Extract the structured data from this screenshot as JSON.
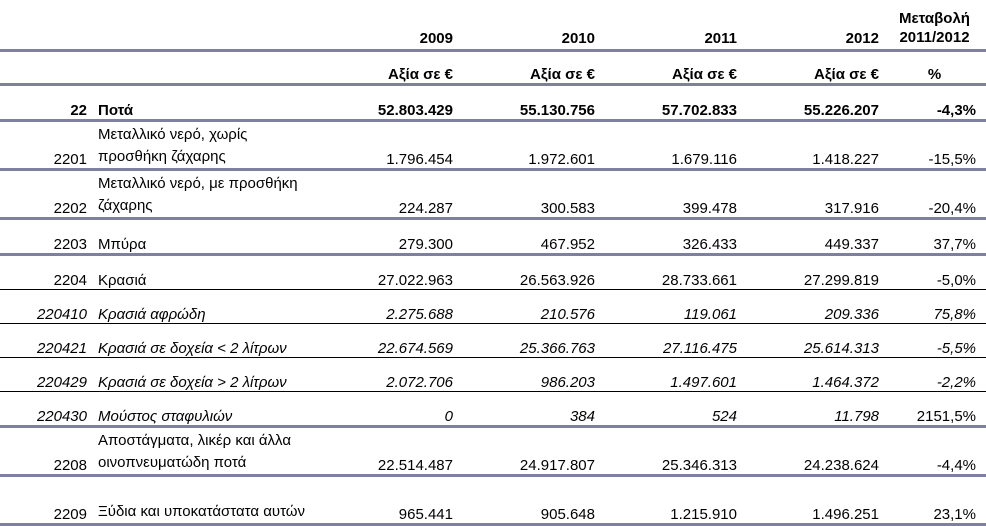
{
  "header": {
    "years": [
      "2009",
      "2010",
      "2011",
      "2012"
    ],
    "change_label": "Μεταβολή 2011/2012",
    "value_label": "Αξία σε €",
    "percent_label": "%"
  },
  "rows": [
    {
      "code": "22",
      "desc": "Ποτά",
      "v2009": "52.803.429",
      "v2010": "55.130.756",
      "v2011": "57.702.833",
      "v2012": "55.226.207",
      "change": "-4,3%"
    },
    {
      "code": "2201",
      "desc": "Μεταλλικό νερό, χωρίς προσθήκη ζάχαρης",
      "v2009": "1.796.454",
      "v2010": "1.972.601",
      "v2011": "1.679.116",
      "v2012": "1.418.227",
      "change": "-15,5%"
    },
    {
      "code": "2202",
      "desc": "Μεταλλικό νερό, με προσθήκη ζάχαρης",
      "v2009": "224.287",
      "v2010": "300.583",
      "v2011": "399.478",
      "v2012": "317.916",
      "change": "-20,4%"
    },
    {
      "code": "2203",
      "desc": "Μπύρα",
      "v2009": "279.300",
      "v2010": "467.952",
      "v2011": "326.433",
      "v2012": "449.337",
      "change": "37,7%"
    },
    {
      "code": "2204",
      "desc": "Κρασιά",
      "v2009": "27.022.963",
      "v2010": "26.563.926",
      "v2011": "28.733.661",
      "v2012": "27.299.819",
      "change": "-5,0%"
    },
    {
      "code": "220410",
      "desc": "Κρασιά αφρώδη",
      "v2009": "2.275.688",
      "v2010": "210.576",
      "v2011": "119.061",
      "v2012": "209.336",
      "change": "75,8%"
    },
    {
      "code": "220421",
      "desc": "Κρασιά σε δοχεία < 2 λίτρων",
      "v2009": "22.674.569",
      "v2010": "25.366.763",
      "v2011": "27.116.475",
      "v2012": "25.614.313",
      "change": "-5,5%"
    },
    {
      "code": "220429",
      "desc": "Κρασιά σε δοχεία > 2 λίτρων",
      "v2009": "2.072.706",
      "v2010": "986.203",
      "v2011": "1.497.601",
      "v2012": "1.464.372",
      "change": "-2,2%"
    },
    {
      "code": "220430",
      "desc": "Μούστος σταφυλιών",
      "v2009": "0",
      "v2010": "384",
      "v2011": "524",
      "v2012": "11.798",
      "change": "2151,5%"
    },
    {
      "code": "2208",
      "desc": "Αποστάγματα, λικέρ και άλλα οινοπνευματώδη ποτά",
      "v2009": "22.514.487",
      "v2010": "24.917.807",
      "v2011": "25.346.313",
      "v2012": "24.238.624",
      "change": "-4,4%"
    },
    {
      "code": "2209",
      "desc": "Ξύδια και υποκατάστατα αυτών",
      "v2009": "965.441",
      "v2010": "905.648",
      "v2011": "1.215.910",
      "v2012": "1.496.251",
      "change": "23,1%"
    }
  ]
}
